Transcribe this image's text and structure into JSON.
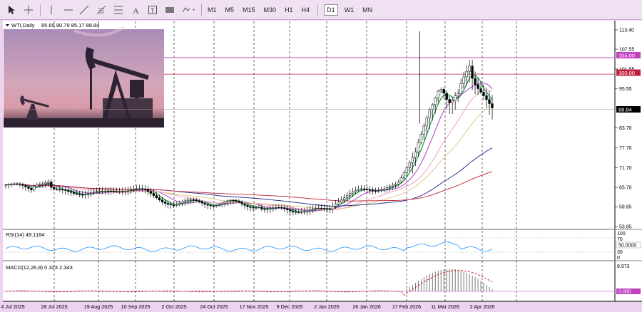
{
  "toolbar": {
    "tools": [
      "cursor-icon",
      "crosshair-icon",
      "vertical-line-icon",
      "horizontal-line-icon",
      "trend-line-icon",
      "fibonacci-icon",
      "channel-icon",
      "text-icon",
      "label-icon",
      "rectangle-icon",
      "shapes-icon"
    ],
    "timeframes": [
      "M1",
      "M5",
      "M15",
      "M30",
      "H1",
      "H4",
      "D1",
      "W1",
      "MN"
    ],
    "active_timeframe": "D1"
  },
  "chart": {
    "title": "WTI,Daily",
    "ohlc": "85.65 90.79 85.17 88.84",
    "current_price": "88.84",
    "levels": [
      {
        "label": "105.00",
        "value": 105.0,
        "color": "#c040c0"
      },
      {
        "label": "100.00",
        "value": 100.0,
        "color": "#c02040"
      }
    ],
    "yticks": [
      "113.40",
      "107.55",
      "101.55",
      "95.55",
      "88.84",
      "83.70",
      "77.70",
      "71.70",
      "65.70",
      "59.85",
      "53.85"
    ],
    "xticks": [
      "4 Jul 2025",
      "28 Jul 2025",
      "19 Aug 2025",
      "10 Sep 2025",
      "2 Oct 2025",
      "24 Oct 2025",
      "17 Nov 2025",
      "9 Dec 2025",
      "2 Jan 2026",
      "26 Jan 2026",
      "17 Feb 2026",
      "11 Mar 2026",
      "2 Apr 2026"
    ],
    "colors": {
      "up": "#000000",
      "grid": "#000000",
      "bg": "#ffffff"
    }
  },
  "rsi": {
    "label": "RSI(14) 49.1184",
    "levels": [
      "100",
      "70",
      "50.0000",
      "30",
      "0"
    ],
    "current": "50.0000"
  },
  "macd": {
    "label": "MACD(12,26,9) 0.323 2.343",
    "yticks": [
      "8.973",
      "0.000"
    ],
    "current": "0.000"
  }
}
